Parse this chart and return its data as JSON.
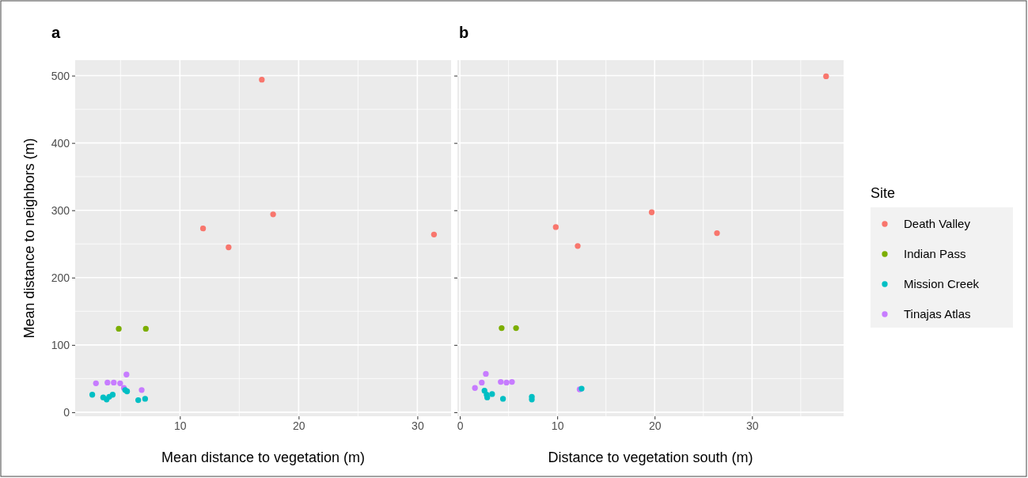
{
  "chart_data": [
    {
      "type": "scatter",
      "title": "a",
      "xlabel": "Mean distance to vegetation (m)",
      "ylabel": "Mean distance to neighbors (m)",
      "xlim": [
        1.18,
        32.84
      ],
      "ylim": [
        -6,
        523
      ],
      "xticks": [
        10,
        20,
        30
      ],
      "yticks": [
        0,
        100,
        200,
        300,
        400,
        500
      ],
      "grid": true,
      "legend": false,
      "marker": "circle",
      "series": [
        {
          "color": "#f8766d",
          "x": [
            16.9,
            11.95,
            14.1,
            17.85,
            31.4
          ],
          "values": [
            494,
            273,
            245,
            294,
            264
          ]
        },
        {
          "color": "#7cae00",
          "x": [
            4.85,
            7.13
          ],
          "values": [
            124,
            124
          ]
        },
        {
          "color": "#00bfc4",
          "x": [
            2.62,
            3.54,
            3.83,
            4.05,
            4.34,
            5.39,
            5.55,
            6.49,
            7.07
          ],
          "values": [
            26,
            22,
            19,
            23,
            26,
            33,
            31,
            18,
            20
          ]
        },
        {
          "color": "#c77cff",
          "x": [
            2.93,
            3.9,
            4.43,
            4.97,
            5.28,
            5.5,
            6.78
          ],
          "values": [
            43,
            44,
            44,
            43,
            36,
            56,
            33
          ]
        }
      ]
    },
    {
      "type": "scatter",
      "title": "b",
      "xlabel": "Distance to vegetation south (m)",
      "xlim": [
        -0.25,
        39.4
      ],
      "ylim": [
        -6,
        523
      ],
      "xticks": [
        0,
        10,
        20,
        30
      ],
      "yticks": [
        0,
        100,
        200,
        300,
        400,
        500
      ],
      "tick_labels": "x",
      "grid": true,
      "legend": "right",
      "legend_title": "Site",
      "marker": "circle",
      "series": [
        {
          "name": "Death Valley",
          "color": "#f8766d",
          "x": [
            9.85,
            12.1,
            19.7,
            26.4,
            37.6
          ],
          "values": [
            275,
            247,
            297,
            266,
            499
          ]
        },
        {
          "name": "Indian Pass",
          "color": "#7cae00",
          "x": [
            4.29,
            5.77
          ],
          "values": [
            125,
            125
          ]
        },
        {
          "name": "Mission Creek",
          "color": "#00bfc4",
          "x": [
            2.53,
            2.75,
            2.81,
            3.31,
            4.43,
            7.39,
            7.39,
            12.5
          ],
          "values": [
            32,
            26,
            22,
            27,
            20,
            23,
            19,
            35
          ]
        },
        {
          "name": "Tinajas Atlas",
          "color": "#c77cff",
          "x": [
            1.55,
            2.25,
            2.67,
            4.2,
            4.79,
            5.35,
            12.3
          ],
          "values": [
            36,
            44,
            57,
            45,
            44,
            45,
            34
          ]
        }
      ]
    }
  ]
}
